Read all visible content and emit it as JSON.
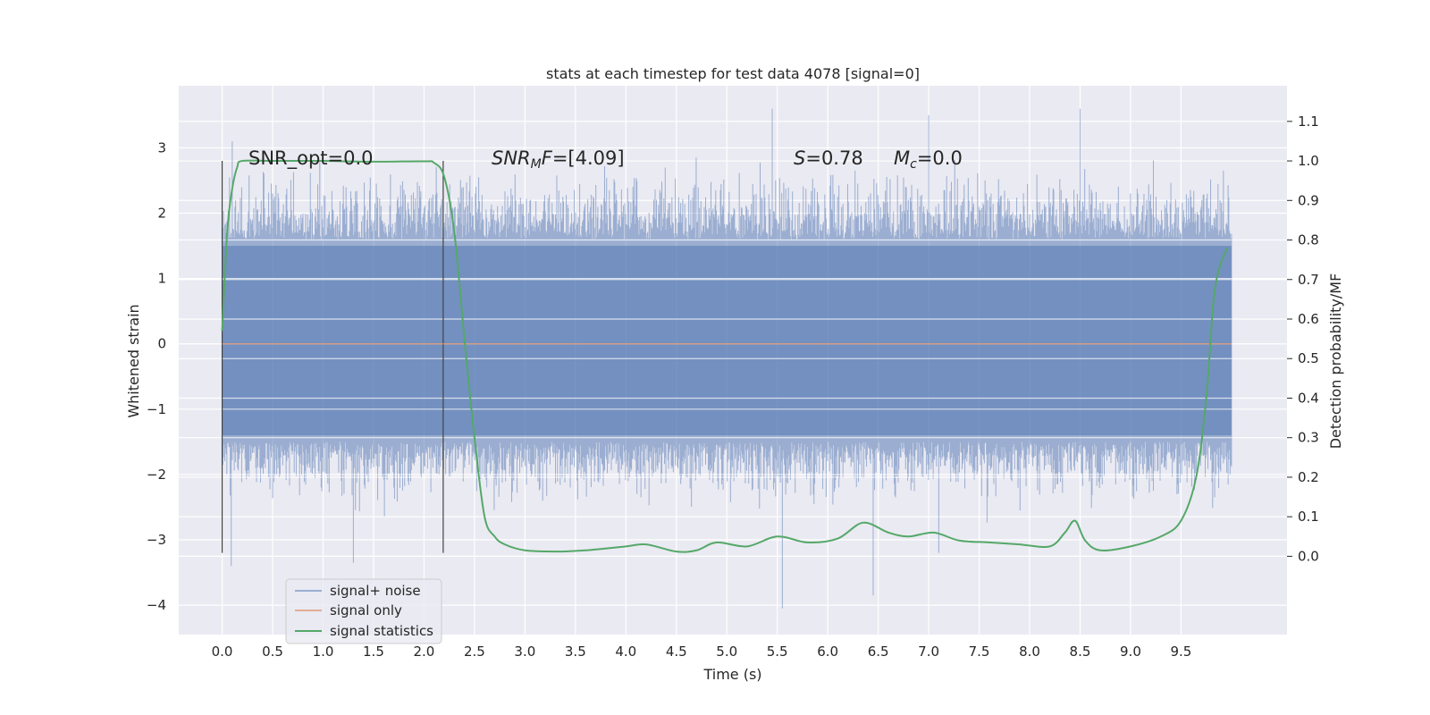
{
  "chart_data": {
    "type": "line",
    "title": "stats at each timestep for test data 4078 [signal=0]",
    "xlabel": "Time (s)",
    "ylabel": "Whitened strain",
    "y2label": "Detection probability/MF",
    "xlim": [
      -0.43,
      10.55
    ],
    "ylim": [
      -4.45,
      3.95
    ],
    "y2lim": [
      -0.198,
      1.19
    ],
    "x_ticks": [
      0.0,
      0.5,
      1.0,
      1.5,
      2.0,
      2.5,
      3.0,
      3.5,
      4.0,
      4.5,
      5.0,
      5.5,
      6.0,
      6.5,
      7.0,
      7.5,
      8.0,
      8.5,
      9.0,
      9.5
    ],
    "y_ticks": [
      -4,
      -3,
      -2,
      -1,
      0,
      1,
      2,
      3
    ],
    "y2_ticks": [
      0.0,
      0.1,
      0.2,
      0.3,
      0.4,
      0.5,
      0.6,
      0.7,
      0.8,
      0.9,
      1.0,
      1.1
    ],
    "grid": true,
    "legend_position": "lower-left",
    "annotations": [
      "SNR_opt=0.0",
      "SNR_MF=[4.09]",
      "S=0.78",
      "M_c=0.0"
    ],
    "vertical_lines": [
      0.0,
      2.19
    ],
    "series": [
      {
        "name": "signal+ noise",
        "color": "#4c72b0",
        "axis": "left",
        "x_range": [
          0.0,
          10.0
        ],
        "typical_envelope": [
          -1.5,
          1.6
        ],
        "spikes": [
          [
            0.1,
            3.1
          ],
          [
            0.09,
            -3.4
          ],
          [
            1.3,
            -3.35
          ],
          [
            5.45,
            3.6
          ],
          [
            5.55,
            -4.05
          ],
          [
            6.45,
            -3.85
          ],
          [
            7.0,
            3.5
          ],
          [
            8.5,
            3.6
          ],
          [
            7.1,
            -3.2
          ]
        ]
      },
      {
        "name": "signal only",
        "color": "#dd8452",
        "axis": "left",
        "x": [
          0.0,
          10.0
        ],
        "values": [
          0.0,
          0.0
        ]
      },
      {
        "name": "signal statistics",
        "color": "#55a868",
        "axis": "right",
        "x": [
          0.0,
          0.05,
          0.1,
          0.15,
          0.2,
          0.5,
          1.0,
          1.5,
          2.0,
          2.1,
          2.2,
          2.3,
          2.4,
          2.5,
          2.6,
          2.7,
          2.8,
          3.0,
          3.3,
          3.6,
          4.0,
          4.2,
          4.5,
          4.7,
          4.9,
          5.2,
          5.5,
          5.8,
          6.1,
          6.35,
          6.6,
          6.8,
          7.05,
          7.3,
          7.6,
          7.9,
          8.2,
          8.35,
          8.45,
          8.55,
          8.7,
          9.0,
          9.3,
          9.5,
          9.65,
          9.75,
          9.82,
          9.88,
          9.96
        ],
        "values": [
          0.57,
          0.82,
          0.93,
          0.985,
          1.0,
          1.0,
          1.0,
          0.998,
          0.999,
          0.995,
          0.96,
          0.82,
          0.55,
          0.3,
          0.1,
          0.05,
          0.03,
          0.015,
          0.012,
          0.015,
          0.025,
          0.03,
          0.012,
          0.015,
          0.035,
          0.025,
          0.05,
          0.035,
          0.045,
          0.085,
          0.06,
          0.05,
          0.06,
          0.04,
          0.035,
          0.03,
          0.025,
          0.06,
          0.09,
          0.04,
          0.015,
          0.025,
          0.05,
          0.09,
          0.2,
          0.4,
          0.64,
          0.73,
          0.78
        ]
      }
    ]
  }
}
